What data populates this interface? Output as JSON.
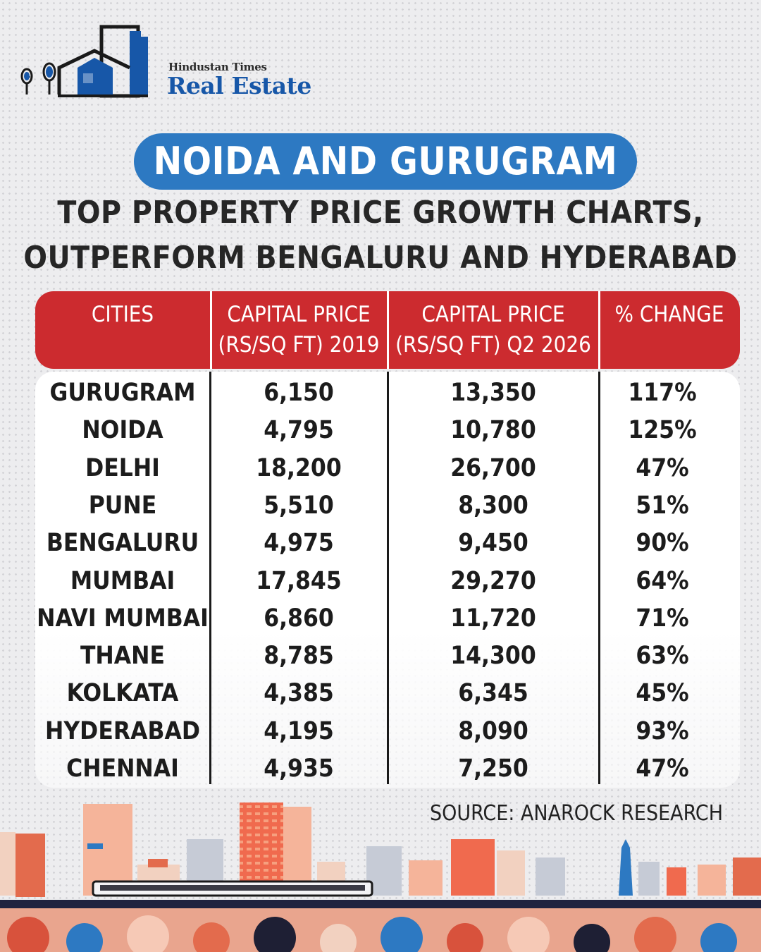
{
  "brand": {
    "sub": "Hindustan Times",
    "main": "Real Estate"
  },
  "title": "NOIDA AND GURUGRAM",
  "subtitle_lines": [
    "TOP PROPERTY PRICE GROWTH CHARTS,",
    "OUTPERFORM BENGALURU AND HYDERABAD"
  ],
  "colors": {
    "accent_blue": "#2d79c2",
    "header_red": "#cc2b2f",
    "logo_blue": "#1757a8"
  },
  "chart_data": {
    "type": "table",
    "columns": [
      "CITIES",
      "CAPITAL PRICE\n(RS/SQ FT) 2019",
      "CAPITAL PRICE\n(RS/SQ FT)  Q2 2026",
      "% CHANGE"
    ],
    "rows": [
      [
        "GURUGRAM",
        "6,150",
        "13,350",
        "117%"
      ],
      [
        "NOIDA",
        "4,795",
        "10,780",
        "125%"
      ],
      [
        "DELHI",
        "18,200",
        "26,700",
        "47%"
      ],
      [
        "PUNE",
        "5,510",
        "8,300",
        "51%"
      ],
      [
        "BENGALURU",
        "4,975",
        "9,450",
        "90%"
      ],
      [
        "MUMBAI",
        "17,845",
        "29,270",
        "64%"
      ],
      [
        "NAVI MUMBAI",
        "6,860",
        "11,720",
        "71%"
      ],
      [
        "THANE",
        "8,785",
        "14,300",
        "63%"
      ],
      [
        "KOLKATA",
        "4,385",
        "6,345",
        "45%"
      ],
      [
        "HYDERABAD",
        "4,195",
        "8,090",
        "93%"
      ],
      [
        "CHENNAI",
        "4,935",
        "7,250",
        "47%"
      ]
    ]
  },
  "source": "SOURCE: ANAROCK RESEARCH"
}
